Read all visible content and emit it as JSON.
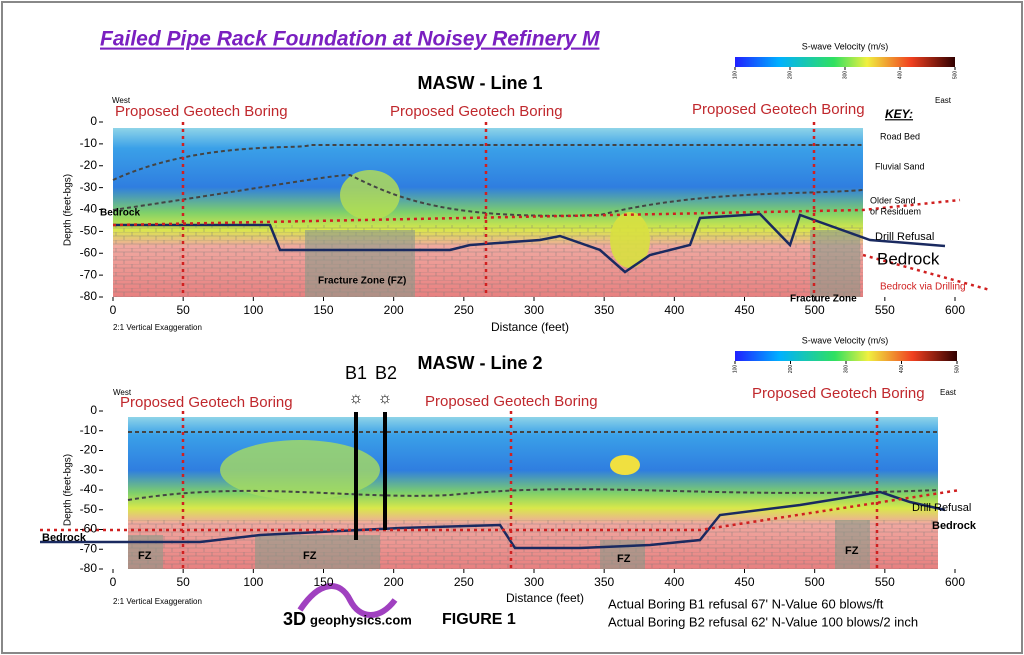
{
  "title": "Failed Pipe Rack Foundation at Noisey Refinery M",
  "colorbar": {
    "label": "S-wave Velocity (m/s)",
    "clim": [
      100,
      500
    ],
    "ticks": [
      100,
      200,
      300,
      400,
      500
    ]
  },
  "panels": [
    {
      "title": "MASW - Line 1",
      "x_label": "Distance (feet)",
      "y_label": "Depth (feet-bgs)",
      "xlim": [
        0,
        600
      ],
      "ylim": [
        -80,
        0
      ],
      "xticks": [
        0,
        50,
        100,
        150,
        200,
        250,
        300,
        350,
        400,
        450,
        500,
        550,
        600
      ],
      "yticks": [
        0,
        -10,
        -20,
        -30,
        -40,
        -50,
        -60,
        -70,
        -80
      ],
      "west": "West",
      "east": "East",
      "exaggeration": "2:1 Vertical Exaggeration",
      "borings": [
        "Proposed Geotech Boring",
        "Proposed Geotech Boring",
        "Proposed Geotech Boring"
      ],
      "key": {
        "title": "KEY:",
        "road_bed": "Road Bed",
        "fluvial_sand": "Fluvial Sand",
        "older_sand_1": "Older Sand",
        "older_sand_2": "or Residuem",
        "drill_refusal": "Drill Refusal",
        "bedrock": "Bedrock",
        "bedrock_drilling": "Bedrock via Drilling"
      },
      "bedrock_left": "Bedrock",
      "fracture_zone": "Fracture Zone (FZ)",
      "fracture_zone_2": "Fracture Zone"
    },
    {
      "title": "MASW - Line 2",
      "x_label": "Distance (feet)",
      "y_label": "Depth (feet-bgs)",
      "xlim": [
        0,
        600
      ],
      "ylim": [
        -80,
        0
      ],
      "xticks": [
        0,
        50,
        100,
        150,
        200,
        250,
        300,
        350,
        400,
        450,
        500,
        550,
        600
      ],
      "yticks": [
        0,
        -10,
        -20,
        -30,
        -40,
        -50,
        -60,
        -70,
        -80
      ],
      "west": "West",
      "east": "East",
      "exaggeration": "2:1 Vertical Exaggeration",
      "borings": [
        "Proposed Geotech Boring",
        "Proposed Geotech Boring",
        "Proposed Geotech Boring"
      ],
      "b1": "B1",
      "b2": "B2",
      "drill_refusal": "Drill Refusal",
      "bedrock_left": "Bedrock",
      "bedrock_right": "Bedrock",
      "fz": [
        "FZ",
        "FZ",
        "FZ",
        "FZ"
      ]
    }
  ],
  "footer": {
    "logo_1": "3D",
    "logo_2": "geophysics.com",
    "figure": "FIGURE 1",
    "note_1": "Actual Boring B1 refusal 67' N-Value 60 blows/ft",
    "note_2": "Actual Boring B2 refusal 62' N-Value 100 blows/2 inch"
  }
}
